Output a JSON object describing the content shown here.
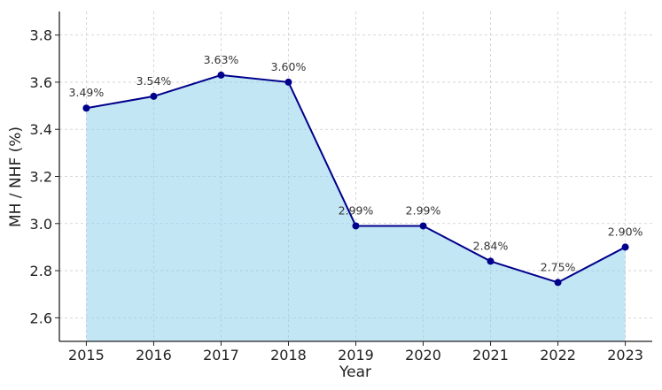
{
  "chart_data": {
    "type": "area",
    "title": "",
    "xlabel": "Year",
    "ylabel": "MH / NHF (%)",
    "x": [
      2015,
      2016,
      2017,
      2018,
      2019,
      2020,
      2021,
      2022,
      2023
    ],
    "values": [
      3.49,
      3.54,
      3.63,
      3.6,
      2.99,
      2.99,
      2.84,
      2.75,
      2.9
    ],
    "data_labels": [
      "3.49%",
      "3.54%",
      "3.63%",
      "3.60%",
      "2.99%",
      "2.99%",
      "2.84%",
      "2.75%",
      "2.90%"
    ],
    "xticks": [
      "2015",
      "2016",
      "2017",
      "2018",
      "2019",
      "2020",
      "2021",
      "2022",
      "2023"
    ],
    "yticks": [
      "2.6",
      "2.8",
      "3.0",
      "3.2",
      "3.4",
      "3.6",
      "3.8"
    ],
    "xlim": [
      2014.6,
      2023.4
    ],
    "ylim": [
      2.5,
      3.9
    ],
    "grid": true,
    "colors": {
      "line": "#00008b",
      "fill": "#87ceeb",
      "grid": "#cccccc"
    }
  }
}
